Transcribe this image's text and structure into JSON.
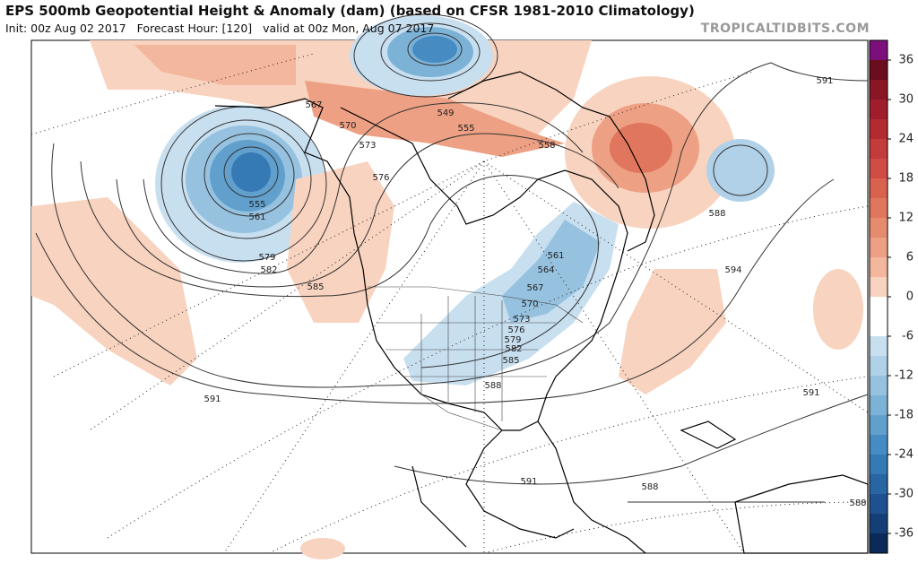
{
  "header": {
    "title": "EPS 500mb Geopotential Height & Anomaly (dam) (based on CFSR 1981-2010 Climatology)",
    "subtitle": "Init: 00z Aug 02 2017   Forecast Hour: [120]   valid at 00z Mon, Aug 07 2017",
    "watermark": "TROPICALTIDBITS.COM"
  },
  "colorbar": {
    "ticks": [
      36,
      30,
      24,
      18,
      12,
      6,
      0,
      -6,
      -12,
      -18,
      -24,
      -30,
      -36
    ],
    "colors": [
      "#7d0f7d",
      "#6b0d1c",
      "#8a1525",
      "#a01d2b",
      "#b52a30",
      "#c53a3a",
      "#d04c44",
      "#d9624f",
      "#e0765d",
      "#e78b6e",
      "#eda083",
      "#f2b79c",
      "#f8d3bf",
      "#ffffff",
      "#ffffff",
      "#c8dff0",
      "#b0d1e8",
      "#96c2e0",
      "#7db2d7",
      "#61a0cd",
      "#468cc2",
      "#3579b5",
      "#2765a3",
      "#1d528e",
      "#143f76",
      "#0b2a5a"
    ]
  },
  "contour_labels": [
    591,
    567,
    570,
    573,
    576,
    549,
    555,
    558,
    555,
    561,
    579,
    582,
    585,
    588,
    594,
    561,
    564,
    567,
    570,
    573,
    576,
    579,
    582,
    585,
    588,
    591,
    591,
    591,
    588,
    588
  ]
}
